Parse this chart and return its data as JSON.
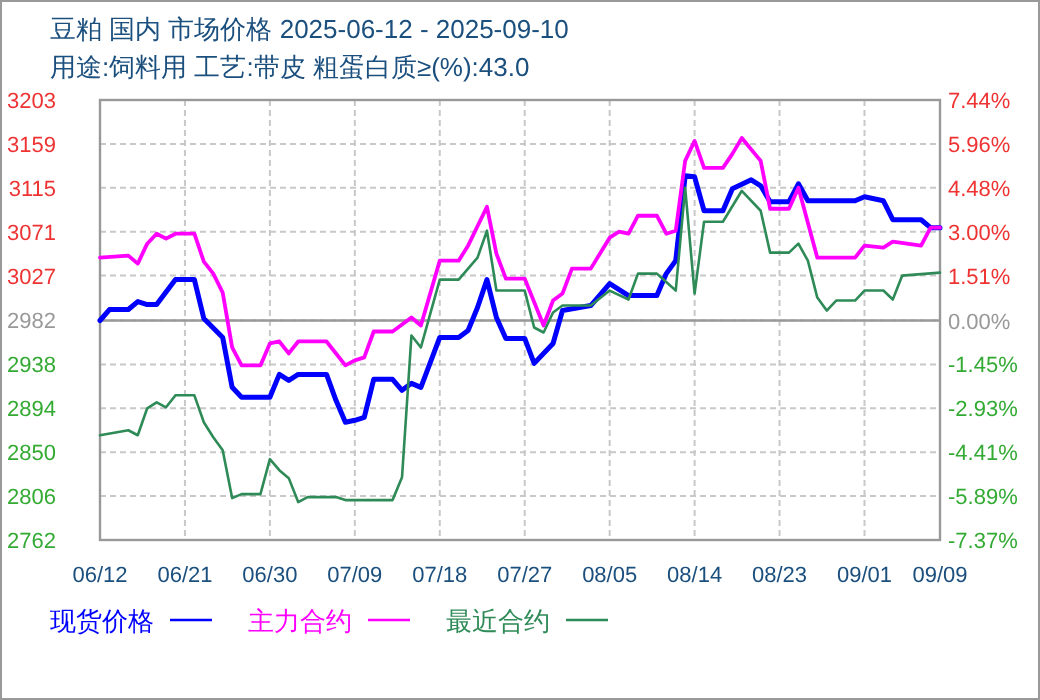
{
  "chart_data": {
    "type": "line",
    "title": "豆粕 国内 市场价格 2025-06-12 - 2025-09-10",
    "subtitle": "用途:饲料用 工艺:带皮 粗蛋白质≥(%):43.0",
    "xlim": [
      "2025-06-12",
      "2025-09-09"
    ],
    "xticks": [
      {
        "value": "2025-06-12",
        "label": "06/12"
      },
      {
        "value": "2025-06-21",
        "label": "06/21"
      },
      {
        "value": "2025-06-30",
        "label": "06/30"
      },
      {
        "value": "2025-07-09",
        "label": "07/09"
      },
      {
        "value": "2025-07-18",
        "label": "07/18"
      },
      {
        "value": "2025-07-27",
        "label": "07/27"
      },
      {
        "value": "2025-08-05",
        "label": "08/05"
      },
      {
        "value": "2025-08-14",
        "label": "08/14"
      },
      {
        "value": "2025-08-23",
        "label": "08/23"
      },
      {
        "value": "2025-09-01",
        "label": "09/01"
      },
      {
        "value": "2025-09-09",
        "label": "09/09"
      }
    ],
    "ylim": [
      2762,
      3203
    ],
    "yticks": [
      2762,
      2806,
      2850,
      2894,
      2938,
      2982,
      3027,
      3071,
      3115,
      3159,
      3203
    ],
    "y2lim": [
      -7.37,
      7.44
    ],
    "y2ticks": [
      {
        "value": -7.37,
        "label": "-7.37%"
      },
      {
        "value": -5.89,
        "label": "-5.89%"
      },
      {
        "value": -4.41,
        "label": "-4.41%"
      },
      {
        "value": -2.93,
        "label": "-2.93%"
      },
      {
        "value": -1.45,
        "label": "-1.45%"
      },
      {
        "value": 0,
        "label": "0.00%"
      },
      {
        "value": 1.51,
        "label": "1.51%"
      },
      {
        "value": 3,
        "label": "3.00%"
      },
      {
        "value": 4.48,
        "label": "4.48%"
      },
      {
        "value": 5.96,
        "label": "5.96%"
      },
      {
        "value": 7.44,
        "label": "7.44%"
      }
    ],
    "grid": true,
    "legend": "bottom",
    "ref_lines": [
      {
        "axis": "y",
        "value": 2982,
        "color": "#999999"
      }
    ],
    "series": [
      {
        "name": "现货价格",
        "color": "#0000ff",
        "x": [
          "2025-06-12",
          "2025-06-13",
          "2025-06-15",
          "2025-06-16",
          "2025-06-17",
          "2025-06-18",
          "2025-06-20",
          "2025-06-22",
          "2025-06-23",
          "2025-06-25",
          "2025-06-26",
          "2025-06-27",
          "2025-06-30",
          "2025-07-01",
          "2025-07-02",
          "2025-07-03",
          "2025-07-06",
          "2025-07-07",
          "2025-07-08",
          "2025-07-09",
          "2025-07-10",
          "2025-07-11",
          "2025-07-13",
          "2025-07-14",
          "2025-07-15",
          "2025-07-16",
          "2025-07-18",
          "2025-07-20",
          "2025-07-21",
          "2025-07-22",
          "2025-07-23",
          "2025-07-24",
          "2025-07-25",
          "2025-07-27",
          "2025-07-28",
          "2025-07-30",
          "2025-07-31",
          "2025-08-03",
          "2025-08-05",
          "2025-08-07",
          "2025-08-10",
          "2025-08-11",
          "2025-08-12",
          "2025-08-13",
          "2025-08-14",
          "2025-08-15",
          "2025-08-17",
          "2025-08-18",
          "2025-08-20",
          "2025-08-21",
          "2025-08-22",
          "2025-08-24",
          "2025-08-25",
          "2025-08-26",
          "2025-08-31",
          "2025-09-01",
          "2025-09-03",
          "2025-09-04",
          "2025-09-07",
          "2025-09-08",
          "2025-09-09"
        ],
        "values": [
          2982,
          2993,
          2993,
          3001,
          2998,
          2998,
          3023,
          3023,
          2984,
          2965,
          2915,
          2905,
          2905,
          2928,
          2922,
          2928,
          2928,
          2902,
          2880,
          2882,
          2885,
          2923,
          2923,
          2912,
          2919,
          2915,
          2965,
          2965,
          2972,
          2995,
          3023,
          2985,
          2964,
          2964,
          2939,
          2959,
          2992,
          2997,
          3019,
          3007,
          3007,
          3029,
          3042,
          3127,
          3126,
          3092,
          3092,
          3114,
          3123,
          3117,
          3101,
          3101,
          3119,
          3102,
          3102,
          3106,
          3102,
          3083,
          3083,
          3075,
          3075
        ]
      },
      {
        "name": "主力合约",
        "color": "#ff00ff",
        "x": [
          "2025-06-12",
          "2025-06-15",
          "2025-06-16",
          "2025-06-17",
          "2025-06-18",
          "2025-06-19",
          "2025-06-20",
          "2025-06-22",
          "2025-06-23",
          "2025-06-24",
          "2025-06-25",
          "2025-06-26",
          "2025-06-27",
          "2025-06-29",
          "2025-06-30",
          "2025-07-01",
          "2025-07-02",
          "2025-07-03",
          "2025-07-06",
          "2025-07-08",
          "2025-07-09",
          "2025-07-10",
          "2025-07-11",
          "2025-07-13",
          "2025-07-15",
          "2025-07-16",
          "2025-07-18",
          "2025-07-20",
          "2025-07-21",
          "2025-07-23",
          "2025-07-24",
          "2025-07-25",
          "2025-07-27",
          "2025-07-29",
          "2025-07-30",
          "2025-07-31",
          "2025-08-01",
          "2025-08-03",
          "2025-08-05",
          "2025-08-06",
          "2025-08-07",
          "2025-08-08",
          "2025-08-10",
          "2025-08-11",
          "2025-08-12",
          "2025-08-13",
          "2025-08-14",
          "2025-08-15",
          "2025-08-17",
          "2025-08-18",
          "2025-08-19",
          "2025-08-21",
          "2025-08-22",
          "2025-08-24",
          "2025-08-25",
          "2025-08-27",
          "2025-08-31",
          "2025-09-01",
          "2025-09-03",
          "2025-09-04",
          "2025-09-07",
          "2025-09-08",
          "2025-09-09"
        ],
        "values": [
          3045,
          3047,
          3039,
          3059,
          3069,
          3064,
          3069,
          3069,
          3041,
          3029,
          3010,
          2955,
          2937,
          2937,
          2959,
          2961,
          2949,
          2961,
          2961,
          2937,
          2942,
          2945,
          2971,
          2971,
          2985,
          2977,
          3042,
          3042,
          3057,
          3096,
          3049,
          3024,
          3024,
          2977,
          3002,
          3009,
          3034,
          3034,
          3065,
          3071,
          3069,
          3087,
          3087,
          3069,
          3072,
          3142,
          3162,
          3135,
          3135,
          3149,
          3165,
          3142,
          3094,
          3094,
          3115,
          3045,
          3045,
          3057,
          3055,
          3061,
          3057,
          3075,
          3075
        ]
      },
      {
        "name": "最近合约",
        "color": "#2e8b57",
        "x": [
          "2025-06-12",
          "2025-06-15",
          "2025-06-16",
          "2025-06-17",
          "2025-06-18",
          "2025-06-19",
          "2025-06-20",
          "2025-06-22",
          "2025-06-23",
          "2025-06-24",
          "2025-06-25",
          "2025-06-26",
          "2025-06-27",
          "2025-06-29",
          "2025-06-30",
          "2025-07-01",
          "2025-07-02",
          "2025-07-03",
          "2025-07-04",
          "2025-07-07",
          "2025-07-08",
          "2025-07-13",
          "2025-07-14",
          "2025-07-15",
          "2025-07-16",
          "2025-07-18",
          "2025-07-20",
          "2025-07-22",
          "2025-07-23",
          "2025-07-24",
          "2025-07-27",
          "2025-07-28",
          "2025-07-29",
          "2025-07-30",
          "2025-07-31",
          "2025-08-03",
          "2025-08-05",
          "2025-08-07",
          "2025-08-08",
          "2025-08-10",
          "2025-08-12",
          "2025-08-13",
          "2025-08-14",
          "2025-08-15",
          "2025-08-17",
          "2025-08-19",
          "2025-08-21",
          "2025-08-22",
          "2025-08-24",
          "2025-08-25",
          "2025-08-26",
          "2025-08-27",
          "2025-08-28",
          "2025-08-29",
          "2025-08-31",
          "2025-09-01",
          "2025-09-03",
          "2025-09-04",
          "2025-09-05",
          "2025-09-09"
        ],
        "values": [
          2867,
          2872,
          2867,
          2894,
          2900,
          2895,
          2907,
          2907,
          2880,
          2865,
          2852,
          2804,
          2808,
          2808,
          2843,
          2832,
          2824,
          2800,
          2805,
          2805,
          2802,
          2802,
          2825,
          2967,
          2955,
          3023,
          3023,
          3045,
          3072,
          3012,
          3012,
          2975,
          2970,
          2990,
          2997,
          2997,
          3012,
          3003,
          3029,
          3029,
          3012,
          3115,
          3009,
          3081,
          3081,
          3112,
          3092,
          3050,
          3050,
          3059,
          3042,
          3005,
          2992,
          3002,
          3002,
          3012,
          3012,
          3003,
          3027,
          3030
        ]
      }
    ]
  }
}
